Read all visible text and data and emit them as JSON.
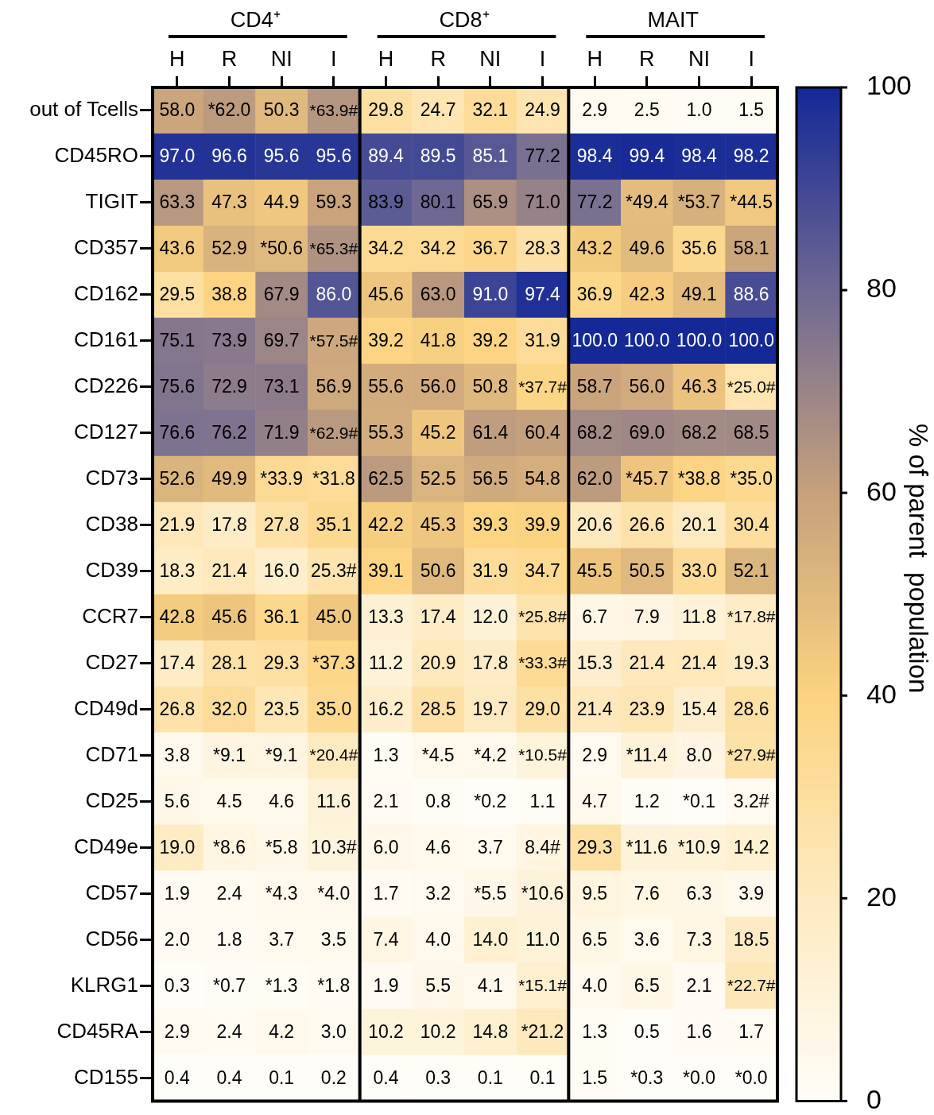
{
  "chart_data": {
    "type": "heatmap",
    "annotations": [
      "CD4⁺",
      "CD8⁺",
      "MAIT"
    ],
    "categories": [
      "H",
      "R",
      "NI",
      "I",
      "H",
      "R",
      "NI",
      "I",
      "H",
      "R",
      "NI",
      "I"
    ],
    "y_categories": [
      "out of Tcells",
      "CD45RO",
      "TIGIT",
      "CD357",
      "CD162",
      "CD161",
      "CD226",
      "CD127",
      "CD73",
      "CD38",
      "CD39",
      "CCR7",
      "CD27",
      "CD49d",
      "CD71",
      "CD25",
      "CD49e",
      "CD57",
      "CD56",
      "KLRG1",
      "CD45RA",
      "CD155"
    ],
    "clim": [
      0,
      100
    ],
    "cticks": [
      0,
      20,
      40,
      60,
      80,
      100
    ],
    "clabel": "% of parent  population",
    "cells": [
      [
        58.0,
        62.0,
        50.3,
        63.9,
        29.8,
        24.7,
        32.1,
        24.9,
        2.9,
        2.5,
        1.0,
        1.5
      ],
      [
        97.0,
        96.6,
        95.6,
        95.6,
        89.4,
        89.5,
        85.1,
        77.2,
        98.4,
        99.4,
        98.4,
        98.2
      ],
      [
        63.3,
        47.3,
        44.9,
        59.3,
        83.9,
        80.1,
        65.9,
        71.0,
        77.2,
        49.4,
        53.7,
        44.5
      ],
      [
        43.6,
        52.9,
        50.6,
        65.3,
        34.2,
        34.2,
        36.7,
        28.3,
        43.2,
        49.6,
        35.6,
        58.1
      ],
      [
        29.5,
        38.8,
        67.9,
        86.0,
        45.6,
        63.0,
        91.0,
        97.4,
        36.9,
        42.3,
        49.1,
        88.6
      ],
      [
        75.1,
        73.9,
        69.7,
        57.5,
        39.2,
        41.8,
        39.2,
        31.9,
        100.0,
        100.0,
        100.0,
        100.0
      ],
      [
        75.6,
        72.9,
        73.1,
        56.9,
        55.6,
        56.0,
        50.8,
        37.7,
        58.7,
        56.0,
        46.3,
        25.0
      ],
      [
        76.6,
        76.2,
        71.9,
        62.9,
        55.3,
        45.2,
        61.4,
        60.4,
        68.2,
        69.0,
        68.2,
        68.5
      ],
      [
        52.6,
        49.9,
        33.9,
        31.8,
        62.5,
        52.5,
        56.5,
        54.8,
        62.0,
        45.7,
        38.8,
        35.0
      ],
      [
        21.9,
        17.8,
        27.8,
        35.1,
        42.2,
        45.3,
        39.3,
        39.9,
        20.6,
        26.6,
        20.1,
        30.4
      ],
      [
        18.3,
        21.4,
        16.0,
        25.3,
        39.1,
        50.6,
        31.9,
        34.7,
        45.5,
        50.5,
        33.0,
        52.1
      ],
      [
        42.8,
        45.6,
        36.1,
        45.0,
        13.3,
        17.4,
        12.0,
        25.8,
        6.7,
        7.9,
        11.8,
        17.8
      ],
      [
        17.4,
        28.1,
        29.3,
        37.3,
        11.2,
        20.9,
        17.8,
        33.3,
        15.3,
        21.4,
        21.4,
        19.3
      ],
      [
        26.8,
        32.0,
        23.5,
        35.0,
        16.2,
        28.5,
        19.7,
        29.0,
        21.4,
        23.9,
        15.4,
        28.6
      ],
      [
        3.8,
        9.1,
        9.1,
        20.4,
        1.3,
        4.5,
        4.2,
        10.5,
        2.9,
        11.4,
        8.0,
        27.9
      ],
      [
        5.6,
        4.5,
        4.6,
        11.6,
        2.1,
        0.8,
        0.2,
        1.1,
        4.7,
        1.2,
        0.1,
        3.2
      ],
      [
        19.0,
        8.6,
        5.8,
        10.3,
        6.0,
        4.6,
        3.7,
        8.4,
        29.3,
        11.6,
        10.9,
        14.2
      ],
      [
        1.9,
        2.4,
        4.3,
        4.0,
        1.7,
        3.2,
        5.5,
        10.6,
        9.5,
        7.6,
        6.3,
        3.9
      ],
      [
        2.0,
        1.8,
        3.7,
        3.5,
        7.4,
        4.0,
        14.0,
        11.0,
        6.5,
        3.6,
        7.3,
        18.5
      ],
      [
        0.3,
        0.7,
        1.3,
        1.8,
        1.9,
        5.5,
        4.1,
        15.1,
        4.0,
        6.5,
        2.1,
        22.7
      ],
      [
        2.9,
        2.4,
        4.2,
        3.0,
        10.2,
        10.2,
        14.8,
        21.2,
        1.3,
        0.5,
        1.6,
        1.7
      ],
      [
        0.4,
        0.4,
        0.1,
        0.2,
        0.4,
        0.3,
        0.1,
        0.1,
        1.5,
        0.3,
        0.0,
        0.0
      ]
    ],
    "cell_labels": [
      [
        "58.0",
        "*62.0",
        "50.3",
        "*63.9#",
        "29.8",
        "24.7",
        "32.1",
        "24.9",
        "2.9",
        "2.5",
        "1.0",
        "1.5"
      ],
      [
        "97.0",
        "96.6",
        "95.6",
        "95.6",
        "89.4",
        "89.5",
        "85.1",
        "77.2",
        "98.4",
        "99.4",
        "98.4",
        "98.2"
      ],
      [
        "63.3",
        "47.3",
        "44.9",
        "59.3",
        "83.9",
        "80.1",
        "65.9",
        "71.0",
        "77.2",
        "*49.4",
        "*53.7",
        "*44.5"
      ],
      [
        "43.6",
        "52.9",
        "*50.6",
        "*65.3#",
        "34.2",
        "34.2",
        "36.7",
        "28.3",
        "43.2",
        "49.6",
        "35.6",
        "58.1"
      ],
      [
        "29.5",
        "38.8",
        "67.9",
        "86.0",
        "45.6",
        "63.0",
        "91.0",
        "97.4",
        "36.9",
        "42.3",
        "49.1",
        "88.6"
      ],
      [
        "75.1",
        "73.9",
        "69.7",
        "*57.5#",
        "39.2",
        "41.8",
        "39.2",
        "31.9",
        "100.0",
        "100.0",
        "100.0",
        "100.0"
      ],
      [
        "75.6",
        "72.9",
        "73.1",
        "56.9",
        "55.6",
        "56.0",
        "50.8",
        "*37.7#",
        "58.7",
        "56.0",
        "46.3",
        "*25.0#"
      ],
      [
        "76.6",
        "76.2",
        "71.9",
        "*62.9#",
        "55.3",
        "45.2",
        "61.4",
        "60.4",
        "68.2",
        "69.0",
        "68.2",
        "68.5"
      ],
      [
        "52.6",
        "49.9",
        "*33.9",
        "*31.8",
        "62.5",
        "52.5",
        "56.5",
        "54.8",
        "62.0",
        "*45.7",
        "*38.8",
        "*35.0"
      ],
      [
        "21.9",
        "17.8",
        "27.8",
        "35.1",
        "42.2",
        "45.3",
        "39.3",
        "39.9",
        "20.6",
        "26.6",
        "20.1",
        "30.4"
      ],
      [
        "18.3",
        "21.4",
        "16.0",
        "25.3#",
        "39.1",
        "50.6",
        "31.9",
        "34.7",
        "45.5",
        "50.5",
        "33.0",
        "52.1"
      ],
      [
        "42.8",
        "45.6",
        "36.1",
        "45.0",
        "13.3",
        "17.4",
        "12.0",
        "*25.8#",
        "6.7",
        "7.9",
        "11.8",
        "*17.8#"
      ],
      [
        "17.4",
        "28.1",
        "29.3",
        "*37.3",
        "11.2",
        "20.9",
        "17.8",
        "*33.3#",
        "15.3",
        "21.4",
        "21.4",
        "19.3"
      ],
      [
        "26.8",
        "32.0",
        "23.5",
        "35.0",
        "16.2",
        "28.5",
        "19.7",
        "29.0",
        "21.4",
        "23.9",
        "15.4",
        "28.6"
      ],
      [
        "3.8",
        "*9.1",
        "*9.1",
        "*20.4#",
        "1.3",
        "*4.5",
        "*4.2",
        "*10.5#",
        "2.9",
        "*11.4",
        "8.0",
        "*27.9#"
      ],
      [
        "5.6",
        "4.5",
        "4.6",
        "11.6",
        "2.1",
        "0.8",
        "*0.2",
        "1.1",
        "4.7",
        "1.2",
        "*0.1",
        "3.2#"
      ],
      [
        "19.0",
        "*8.6",
        "*5.8",
        "10.3#",
        "6.0",
        "4.6",
        "3.7",
        "8.4#",
        "29.3",
        "*11.6",
        "*10.9",
        "14.2"
      ],
      [
        "1.9",
        "2.4",
        "*4.3",
        "*4.0",
        "1.7",
        "3.2",
        "*5.5",
        "*10.6",
        "9.5",
        "7.6",
        "6.3",
        "3.9"
      ],
      [
        "2.0",
        "1.8",
        "3.7",
        "3.5",
        "7.4",
        "4.0",
        "14.0",
        "11.0",
        "6.5",
        "3.6",
        "7.3",
        "18.5"
      ],
      [
        "0.3",
        "*0.7",
        "*1.3",
        "*1.8",
        "1.9",
        "5.5",
        "4.1",
        "*15.1#",
        "4.0",
        "6.5",
        "2.1",
        "*22.7#"
      ],
      [
        "2.9",
        "2.4",
        "4.2",
        "3.0",
        "10.2",
        "10.2",
        "14.8",
        "*21.2",
        "1.3",
        "0.5",
        "1.6",
        "1.7"
      ],
      [
        "0.4",
        "0.4",
        "0.1",
        "0.2",
        "0.4",
        "0.3",
        "0.1",
        "0.1",
        "1.5",
        "*0.3",
        "*0.0",
        "*0.0"
      ]
    ]
  }
}
